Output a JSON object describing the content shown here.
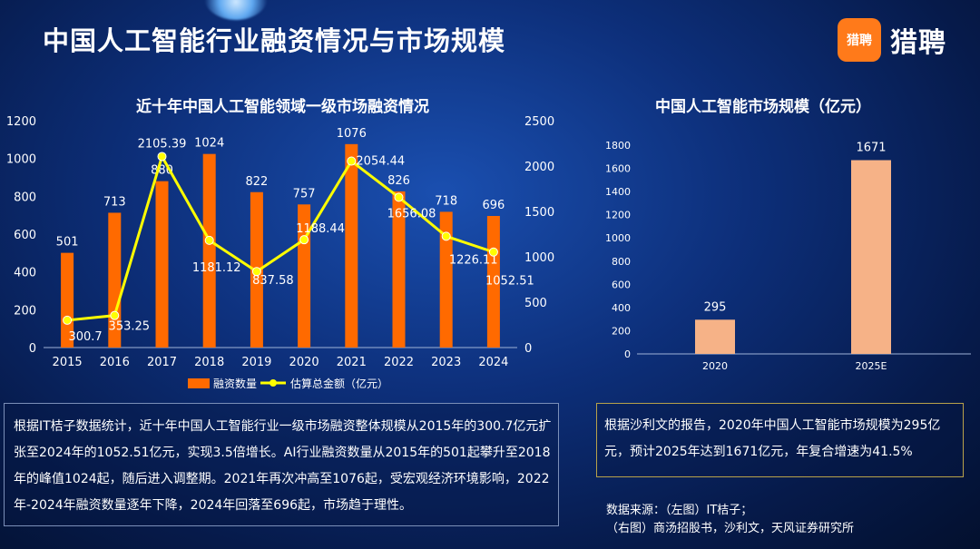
{
  "page_title": "中国人工智能行业融资情况与市场规模",
  "logo": {
    "badge": "猎聘",
    "text": "猎聘",
    "color": "#ff7a1a"
  },
  "colors": {
    "bar_left": "#ff6a00",
    "line": "#ffff00",
    "bar_right": "#f6b287"
  },
  "chart_data": [
    {
      "type": "bar",
      "title": "近十年中国人工智能领域一级市场融资情况",
      "categories": [
        "2015",
        "2016",
        "2017",
        "2018",
        "2019",
        "2020",
        "2021",
        "2022",
        "2023",
        "2024"
      ],
      "series": [
        {
          "name": "融资数量",
          "type": "bar",
          "axis": "left",
          "values": [
            501,
            713,
            880,
            1024,
            822,
            757,
            1076,
            826,
            718,
            696
          ]
        },
        {
          "name": "估算总金额（亿元）",
          "type": "line",
          "axis": "right",
          "values": [
            300.7,
            353.25,
            2105.39,
            1181.12,
            837.58,
            1188.44,
            2054.44,
            1656.08,
            1226.11,
            1052.51
          ]
        }
      ],
      "ylim_left": [
        0,
        1200
      ],
      "yticks_left": [
        0,
        200,
        400,
        600,
        800,
        1000,
        1200
      ],
      "ylim_right": [
        0,
        2500
      ],
      "yticks_right": [
        0,
        500,
        1000,
        1500,
        2000,
        2500
      ],
      "legend_position": "bottom"
    },
    {
      "type": "bar",
      "title": "中国人工智能市场规模（亿元）",
      "categories": [
        "2020",
        "2025E"
      ],
      "values": [
        295,
        1671
      ],
      "ylim": [
        0,
        1800
      ],
      "yticks": [
        0,
        200,
        400,
        600,
        800,
        1000,
        1200,
        1400,
        1600,
        1800
      ]
    }
  ],
  "left_text": "根据IT桔子数据统计，近十年中国人工智能行业一级市场融资整体规模从2015年的300.7亿元扩张至2024年的1052.51亿元，实现3.5倍增长。AI行业融资数量从2015年的501起攀升至2018年的峰值1024起，随后进入调整期。2021年再次冲高至1076起，受宏观经济环境影响，2022年-2024年融资数量逐年下降，2024年回落至696起，市场趋于理性。",
  "right_text": "根据沙利文的报告，2020年中国人工智能市场规模为295亿元，预计2025年达到1671亿元，年复合增速为41.5%",
  "source_line1": "数据来源：（左图）IT桔子；",
  "source_line2": "（右图）商汤招股书，沙利文，天风证券研究所"
}
